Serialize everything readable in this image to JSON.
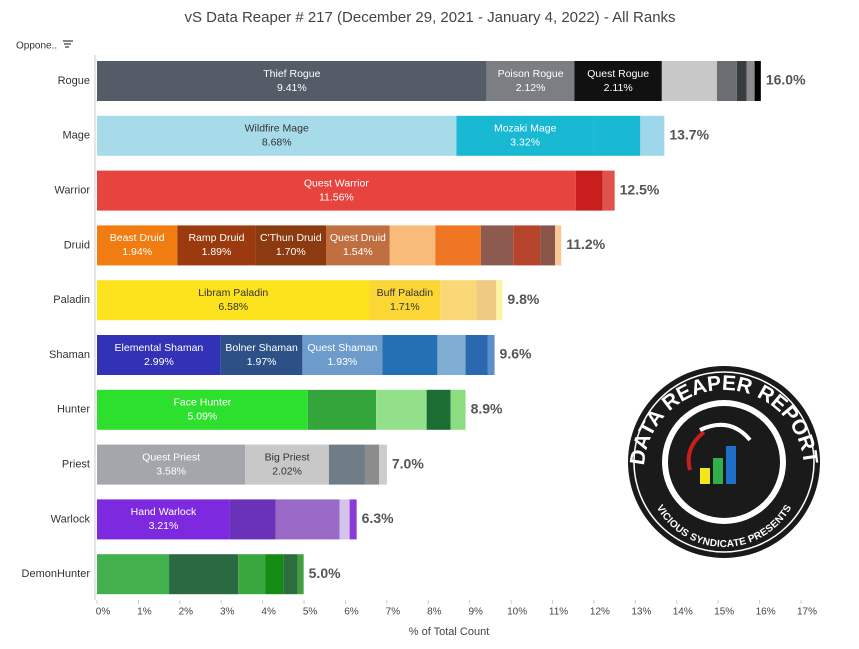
{
  "chart_data": {
    "type": "stacked_bar_h",
    "title": "vS Data Reaper # 217 (December 29, 2021 - January 4, 2022) - All Ranks",
    "filter_label": "Oppone..",
    "x_label": "% of Total Count",
    "xlim": [
      0,
      17
    ],
    "xticks": [
      {
        "value": 0,
        "label": "0%"
      },
      {
        "value": 1,
        "label": "1%"
      },
      {
        "value": 2,
        "label": "2%"
      },
      {
        "value": 3,
        "label": "3%"
      },
      {
        "value": 4,
        "label": "4%"
      },
      {
        "value": 5,
        "label": "5%"
      },
      {
        "value": 6,
        "label": "6%"
      },
      {
        "value": 7,
        "label": "7%"
      },
      {
        "value": 8,
        "label": "8%"
      },
      {
        "value": 9,
        "label": "9%"
      },
      {
        "value": 10,
        "label": "10%"
      },
      {
        "value": 11,
        "label": "11%"
      },
      {
        "value": 12,
        "label": "12%"
      },
      {
        "value": 13,
        "label": "13%"
      },
      {
        "value": 14,
        "label": "14%"
      },
      {
        "value": 15,
        "label": "15%"
      },
      {
        "value": 16,
        "label": "16%"
      },
      {
        "value": 17,
        "label": "17%"
      }
    ],
    "categories": [
      "Rogue",
      "Mage",
      "Warrior",
      "Druid",
      "Paladin",
      "Shaman",
      "Hunter",
      "Priest",
      "Warlock",
      "DemonHunter"
    ],
    "bars": [
      {
        "total_label": "16.0%",
        "segments": [
          {
            "name": "Thief Rogue",
            "value": 9.41,
            "value_label": "9.41%",
            "color": "#545d67"
          },
          {
            "name": "Poison Rogue",
            "value": 2.12,
            "value_label": "2.12%",
            "color": "#7b7e82"
          },
          {
            "name": "Quest Rogue",
            "value": 2.11,
            "value_label": "2.11%",
            "color": "#111111"
          },
          {
            "value": 1.33,
            "color": "#c8c8c8"
          },
          {
            "value": 0.48,
            "color": "#6b6f74"
          },
          {
            "value": 0.24,
            "color": "#3a3d40"
          },
          {
            "value": 0.19,
            "color": "#8c8c8c"
          },
          {
            "value": 0.15,
            "color": "#000000"
          }
        ]
      },
      {
        "total_label": "13.7%",
        "segments": [
          {
            "name": "Wildfire Mage",
            "value": 8.68,
            "value_label": "8.68%",
            "color": "#a8dbea"
          },
          {
            "name": "Mozaki Mage",
            "value": 3.32,
            "value_label": "3.32%",
            "color": "#1ab9d3"
          },
          {
            "value": 1.12,
            "color": "#1ab9d3"
          },
          {
            "value": 0.58,
            "color": "#9fd7ea"
          }
        ]
      },
      {
        "total_label": "12.5%",
        "segments": [
          {
            "name": "Quest Warrior",
            "value": 11.56,
            "value_label": "11.56%",
            "color": "#e8443f"
          },
          {
            "value": 0.65,
            "color": "#c81e1e"
          },
          {
            "value": 0.29,
            "color": "#e0524c"
          }
        ]
      },
      {
        "total_label": "11.2%",
        "segments": [
          {
            "name": "Beast Druid",
            "value": 1.94,
            "value_label": "1.94%",
            "color": "#f07c12"
          },
          {
            "name": "Ramp Druid",
            "value": 1.89,
            "value_label": "1.89%",
            "color": "#9b3a0e"
          },
          {
            "name": "C'Thun Druid",
            "value": 1.7,
            "value_label": "1.70%",
            "color": "#8c3a10"
          },
          {
            "name": "Quest Druid",
            "value": 1.54,
            "value_label": "1.54%",
            "color": "#c07040"
          },
          {
            "value": 1.1,
            "color": "#f9bb7a"
          },
          {
            "value": 1.1,
            "color": "#ee7622"
          },
          {
            "value": 0.78,
            "color": "#8c5a4e"
          },
          {
            "value": 0.65,
            "color": "#b6442a"
          },
          {
            "value": 0.36,
            "color": "#8a5548"
          },
          {
            "value": 0.15,
            "color": "#f6c896"
          }
        ]
      },
      {
        "total_label": "9.8%",
        "segments": [
          {
            "name": "Libram Paladin",
            "value": 6.58,
            "value_label": "6.58%",
            "color": "#fde21e"
          },
          {
            "name": "Buff Paladin",
            "value": 1.71,
            "value_label": "1.71%",
            "color": "#fbd635"
          },
          {
            "value": 0.87,
            "color": "#fbd877"
          },
          {
            "value": 0.48,
            "color": "#efca82"
          },
          {
            "value": 0.15,
            "color": "#fdf3a0"
          }
        ]
      },
      {
        "total_label": "9.6%",
        "segments": [
          {
            "name": "Elemental Shaman",
            "value": 2.99,
            "value_label": "2.99%",
            "color": "#3132b5"
          },
          {
            "name": "Bolner Shaman",
            "value": 1.97,
            "value_label": "1.97%",
            "color": "#2d5087"
          },
          {
            "name": "Quest Shaman",
            "value": 1.93,
            "value_label": "1.93%",
            "color": "#6d9ccc"
          },
          {
            "value": 1.33,
            "color": "#2470b4"
          },
          {
            "value": 0.68,
            "color": "#7fadd4"
          },
          {
            "value": 0.53,
            "color": "#2a68b0"
          },
          {
            "value": 0.17,
            "color": "#5d8fcb"
          }
        ]
      },
      {
        "total_label": "8.9%",
        "segments": [
          {
            "name": "Face Hunter",
            "value": 5.09,
            "value_label": "5.09%",
            "color": "#2ee02e"
          },
          {
            "value": 1.65,
            "color": "#34a53a"
          },
          {
            "value": 1.22,
            "color": "#92e08a"
          },
          {
            "value": 0.58,
            "color": "#1c6e34"
          },
          {
            "value": 0.36,
            "color": "#8edc80"
          }
        ]
      },
      {
        "total_label": "7.0%",
        "segments": [
          {
            "name": "Quest Priest",
            "value": 3.58,
            "value_label": "3.58%",
            "color": "#a3a6aa"
          },
          {
            "name": "Big Priest",
            "value": 2.02,
            "value_label": "2.02%",
            "color": "#c8c8c8"
          },
          {
            "value": 0.87,
            "color": "#717d86"
          },
          {
            "value": 0.34,
            "color": "#8c8c8c"
          },
          {
            "value": 0.19,
            "color": "#cccccc"
          }
        ]
      },
      {
        "total_label": "6.3%",
        "segments": [
          {
            "name": "Hand Warlock",
            "value": 3.21,
            "value_label": "3.21%",
            "color": "#7d29e0"
          },
          {
            "value": 1.1,
            "color": "#6a32b8"
          },
          {
            "value": 1.55,
            "color": "#9a6ac8"
          },
          {
            "value": 0.24,
            "color": "#d4c4ec"
          },
          {
            "value": 0.17,
            "color": "#8b3ad8"
          }
        ]
      },
      {
        "total_label": "5.0%",
        "segments": [
          {
            "value": 1.74,
            "color": "#43b04e"
          },
          {
            "value": 1.67,
            "color": "#2a6a42"
          },
          {
            "value": 0.65,
            "color": "#3aa63e"
          },
          {
            "value": 0.44,
            "color": "#148c14"
          },
          {
            "value": 0.34,
            "color": "#2e6e3e"
          },
          {
            "value": 0.15,
            "color": "#40a040"
          }
        ]
      }
    ],
    "logo": {
      "title": "DATA REAPER REPORT",
      "subtitle": "VICIOUS SYNDICATE PRESENTS"
    }
  }
}
